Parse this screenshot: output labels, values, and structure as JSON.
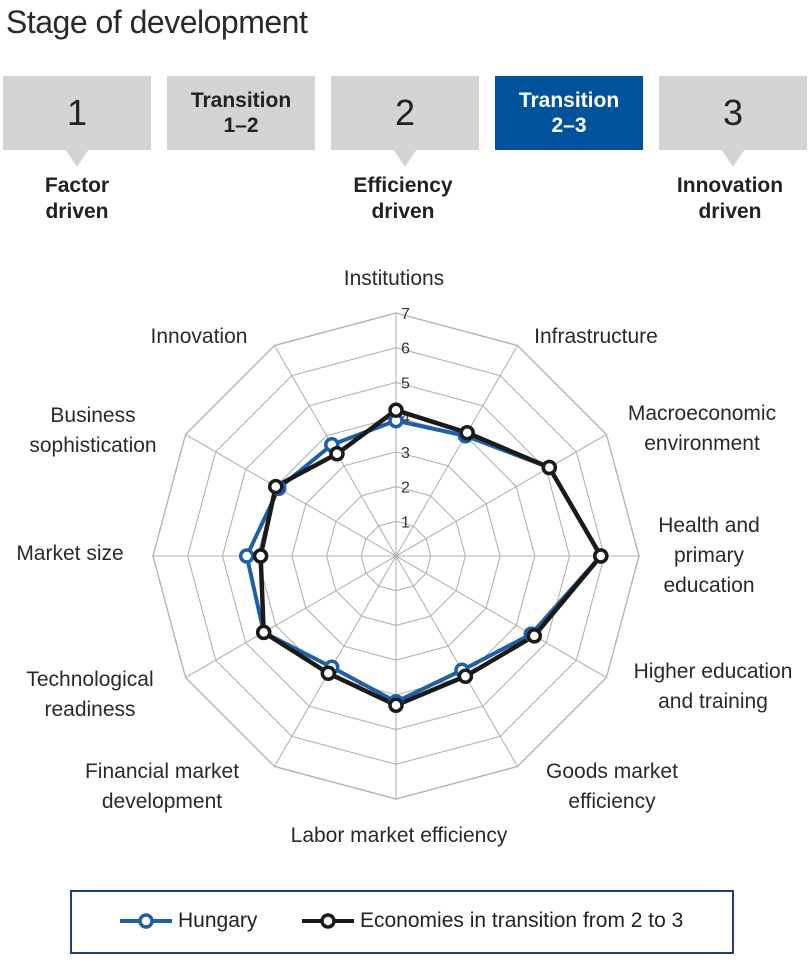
{
  "title": "Stage of development",
  "stages": [
    {
      "label": "1",
      "active": false
    },
    {
      "label": "Transition\n1–2",
      "active": false
    },
    {
      "label": "2",
      "active": false
    },
    {
      "label": "Transition\n2–3",
      "active": true
    },
    {
      "label": "3",
      "active": false
    }
  ],
  "stage_captions": [
    {
      "text": "Factor\ndriven"
    },
    {
      "text": "Efficiency\ndriven"
    },
    {
      "text": "Innovation\ndriven"
    }
  ],
  "colors": {
    "active_stage": "#00529b",
    "inactive_stage": "#d4d4d4",
    "hungary": "#1f5fa8",
    "transition": "#1a1a1a",
    "grid": "#b3b3b3"
  },
  "chart_data": {
    "type": "radar",
    "title": "",
    "axes": [
      "Institutions",
      "Infrastructure",
      "Macroeconomic\nenvironment",
      "Health and\nprimary\neducation",
      "Higher education\nand training",
      "Goods market\nefficiency",
      "Labor market efficiency",
      "Financial market\ndevelopment",
      "Technological\nreadiness",
      "Market size",
      "Business\nsophistication",
      "Innovation"
    ],
    "range": [
      1,
      7
    ],
    "ticks": [
      "1",
      "2",
      "3",
      "4",
      "5",
      "6",
      "7"
    ],
    "series": [
      {
        "name": "Hungary",
        "values": [
          3.9,
          4.0,
          5.1,
          5.9,
          4.5,
          3.8,
          4.2,
          3.7,
          4.4,
          4.3,
          3.9,
          3.7
        ]
      },
      {
        "name": "Economies in transition from 2 to 3",
        "values": [
          4.2,
          4.1,
          5.1,
          5.9,
          4.6,
          4.0,
          4.3,
          3.9,
          4.4,
          3.9,
          4.0,
          3.4
        ]
      }
    ]
  }
}
